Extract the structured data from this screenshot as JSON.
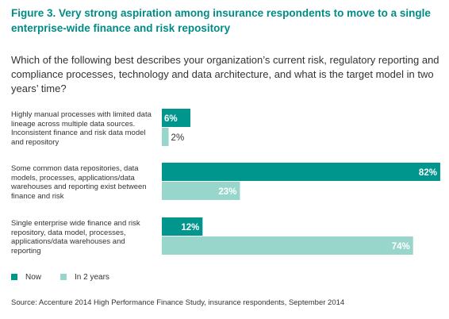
{
  "figure": {
    "title": "Figure 3. Very strong aspiration among insurance respondents to move to a single enterprise-wide finance and risk repository",
    "question": "Which of the following best describes your organization’s current risk, regulatory reporting and compliance processes, technology and data architecture, and what is the target model in two years’ time?",
    "source": "Source: Accenture 2014 High Performance Finance Study, insurance respondents, September 2014"
  },
  "legend": {
    "now": "Now",
    "in_2_years": "In 2 years"
  },
  "colors": {
    "title": "#008c86",
    "now": "#00968d",
    "in_2_years": "#98d6cc"
  },
  "chart_data": {
    "type": "bar",
    "orientation": "horizontal",
    "categories": [
      "Highly manual processes with limited data lineage across multiple data sources. Inconsistent finance and risk data model and repository",
      "Some common data repositories, data models, processes, applications/data warehouses and reporting exist between finance and risk",
      "Single enterprise wide finance and risk repository, data model, processes, applications/data warehouses and reporting"
    ],
    "series": [
      {
        "name": "Now",
        "values": [
          6,
          82,
          12
        ],
        "labels": [
          "6%",
          "82%",
          "12%"
        ]
      },
      {
        "name": "In 2 years",
        "values": [
          2,
          23,
          74
        ],
        "labels": [
          "2%",
          "23%",
          "74%"
        ]
      }
    ],
    "xlim": [
      0,
      100
    ],
    "grid": false,
    "legend_position": "bottom-left"
  }
}
